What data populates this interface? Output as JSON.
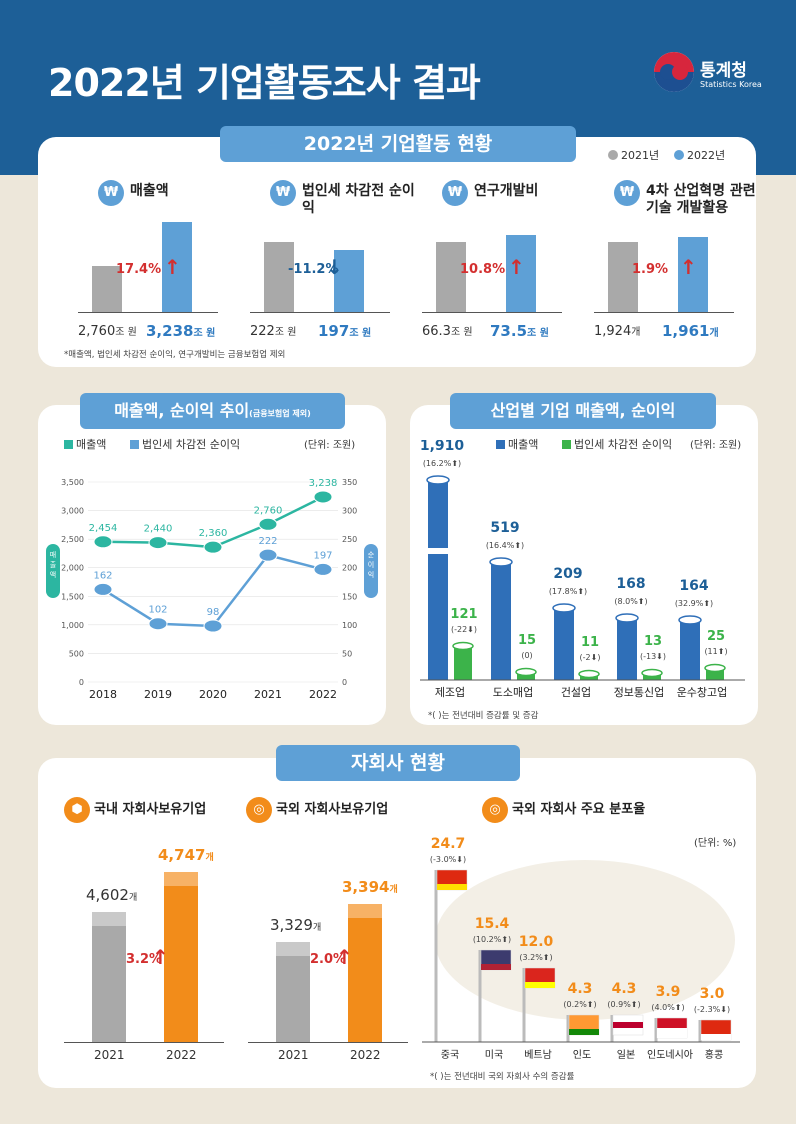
{
  "header": {
    "title": "2022년 기업활동조사 결과",
    "logo_name": "통계청",
    "logo_sub": "Statistics Korea"
  },
  "colors": {
    "header_bg": "#1d5f97",
    "ribbon": "#5ea0d6",
    "gray": "#a9a9a9",
    "blue": "#5ea0d6",
    "teal": "#2cb6a1",
    "bar_blue": "#2f6fb8",
    "green": "#3cb34a",
    "orange": "#f28c1a"
  },
  "section1": {
    "ribbon": "2022년 기업활동 현황",
    "legend": [
      "2021년",
      "2022년"
    ],
    "items": [
      {
        "icon": "money-icon",
        "title": "매출액",
        "pct": "17.4%",
        "dir": "up",
        "v2021": "2,760",
        "u2021": "조 원",
        "v2022": "3,238",
        "u2022": "조 원"
      },
      {
        "icon": "money-icon",
        "title": "법인세 차감전 순이익",
        "pct": "-11.2%",
        "dir": "down",
        "v2021": "222",
        "u2021": "조 원",
        "v2022": "197",
        "u2022": "조 원"
      },
      {
        "icon": "research-icon",
        "title": "연구개발비",
        "pct": "10.8%",
        "dir": "up",
        "v2021": "66.3",
        "u2021": "조 원",
        "v2022": "73.5",
        "u2022": "조 원"
      },
      {
        "icon": "industry4-icon",
        "title": "4차 산업혁명 관련 기술 개발활용",
        "pct": "1.9%",
        "dir": "up",
        "v2021": "1,924",
        "u2021": "개",
        "v2022": "1,961",
        "u2022": "개"
      }
    ],
    "note": "*매출액, 법인세 차감전 순이익, 연구개발비는 금융보험업 제외"
  },
  "section2": {
    "ribbon": "매출액, 순이익 추이",
    "ribbon_sub": "(금융보험업 제외)",
    "legend": [
      "매출액",
      "법인세 차감전 순이익"
    ],
    "unit": "(단위: 조원)",
    "left_side": "매출액",
    "right_side": "순이익",
    "chart_data": {
      "type": "line",
      "x": [
        "2018",
        "2019",
        "2020",
        "2021",
        "2022"
      ],
      "series": [
        {
          "name": "매출액",
          "values": [
            2454,
            2440,
            2360,
            2760,
            3238
          ],
          "labels": [
            "2,454",
            "2,440",
            "2,360",
            "2,760",
            "3,238"
          ],
          "axis": "left"
        },
        {
          "name": "법인세 차감전 순이익",
          "values": [
            162,
            102,
            98,
            222,
            197
          ],
          "labels": [
            "162",
            "102",
            "98",
            "222",
            "197"
          ],
          "axis": "right"
        }
      ],
      "left_ticks": [
        "0",
        "500",
        "1,000",
        "1,500",
        "2,000",
        "2,500",
        "3,000",
        "3,500"
      ],
      "right_ticks": [
        "0",
        "50",
        "100",
        "150",
        "200",
        "250",
        "300",
        "350"
      ],
      "ylim_left": [
        0,
        3500
      ],
      "ylim_right": [
        0,
        350
      ]
    }
  },
  "section3": {
    "ribbon": "산업별 기업 매출액, 순이익",
    "legend": [
      "매출액",
      "법인세 차감전 순이익"
    ],
    "unit": "(단위: 조원)",
    "note": "*( )는 전년대비 증감률 및 증감",
    "chart_data": {
      "type": "bar",
      "categories": [
        "제조업",
        "도소매업",
        "건설업",
        "정보통신업",
        "운수창고업"
      ],
      "series": [
        {
          "name": "매출액",
          "values": [
            1910,
            519,
            209,
            168,
            164
          ],
          "labels": [
            "1,910",
            "519",
            "209",
            "168",
            "164"
          ],
          "changes": [
            "(16.2%⬆)",
            "(16.4%⬆)",
            "(17.8%⬆)",
            "(8.0%⬆)",
            "(32.9%⬆)"
          ]
        },
        {
          "name": "법인세 차감전 순이익",
          "values": [
            121,
            15,
            11,
            13,
            25
          ],
          "labels": [
            "121",
            "15",
            "11",
            "13",
            "25"
          ],
          "changes": [
            "(-22⬇)",
            "(0)",
            "(-2⬇)",
            "(-13⬇)",
            "(11⬆)"
          ]
        }
      ]
    }
  },
  "section4": {
    "ribbon": "자회사 현황",
    "domestic": {
      "title": "국내 자회사보유기업",
      "v2021": "4,602",
      "v2022": "4,747",
      "unit": "개",
      "pct": "3.2%",
      "years": [
        "2021",
        "2022"
      ]
    },
    "foreign": {
      "title": "국외 자회사보유기업",
      "v2021": "3,329",
      "v2022": "3,394",
      "unit": "개",
      "pct": "2.0%",
      "years": [
        "2021",
        "2022"
      ]
    },
    "dist": {
      "title": "국외 자회사 주요 분포율",
      "unit": "(단위: %)",
      "note": "*( )는 전년대비 국외 자회사 수의 증감률",
      "chart_data": {
        "type": "bar",
        "categories": [
          "중국",
          "미국",
          "베트남",
          "인도",
          "일본",
          "인도네시아",
          "홍콩"
        ],
        "values": [
          24.7,
          15.4,
          12.0,
          4.3,
          4.3,
          3.9,
          3.0
        ],
        "labels": [
          "24.7",
          "15.4",
          "12.0",
          "4.3",
          "4.3",
          "3.9",
          "3.0"
        ],
        "changes": [
          "(-3.0%⬇)",
          "(10.2%⬆)",
          "(3.2%⬆)",
          "(0.2%⬆)",
          "(0.9%⬆)",
          "(4.0%⬆)",
          "(-2.3%⬇)"
        ]
      }
    }
  }
}
